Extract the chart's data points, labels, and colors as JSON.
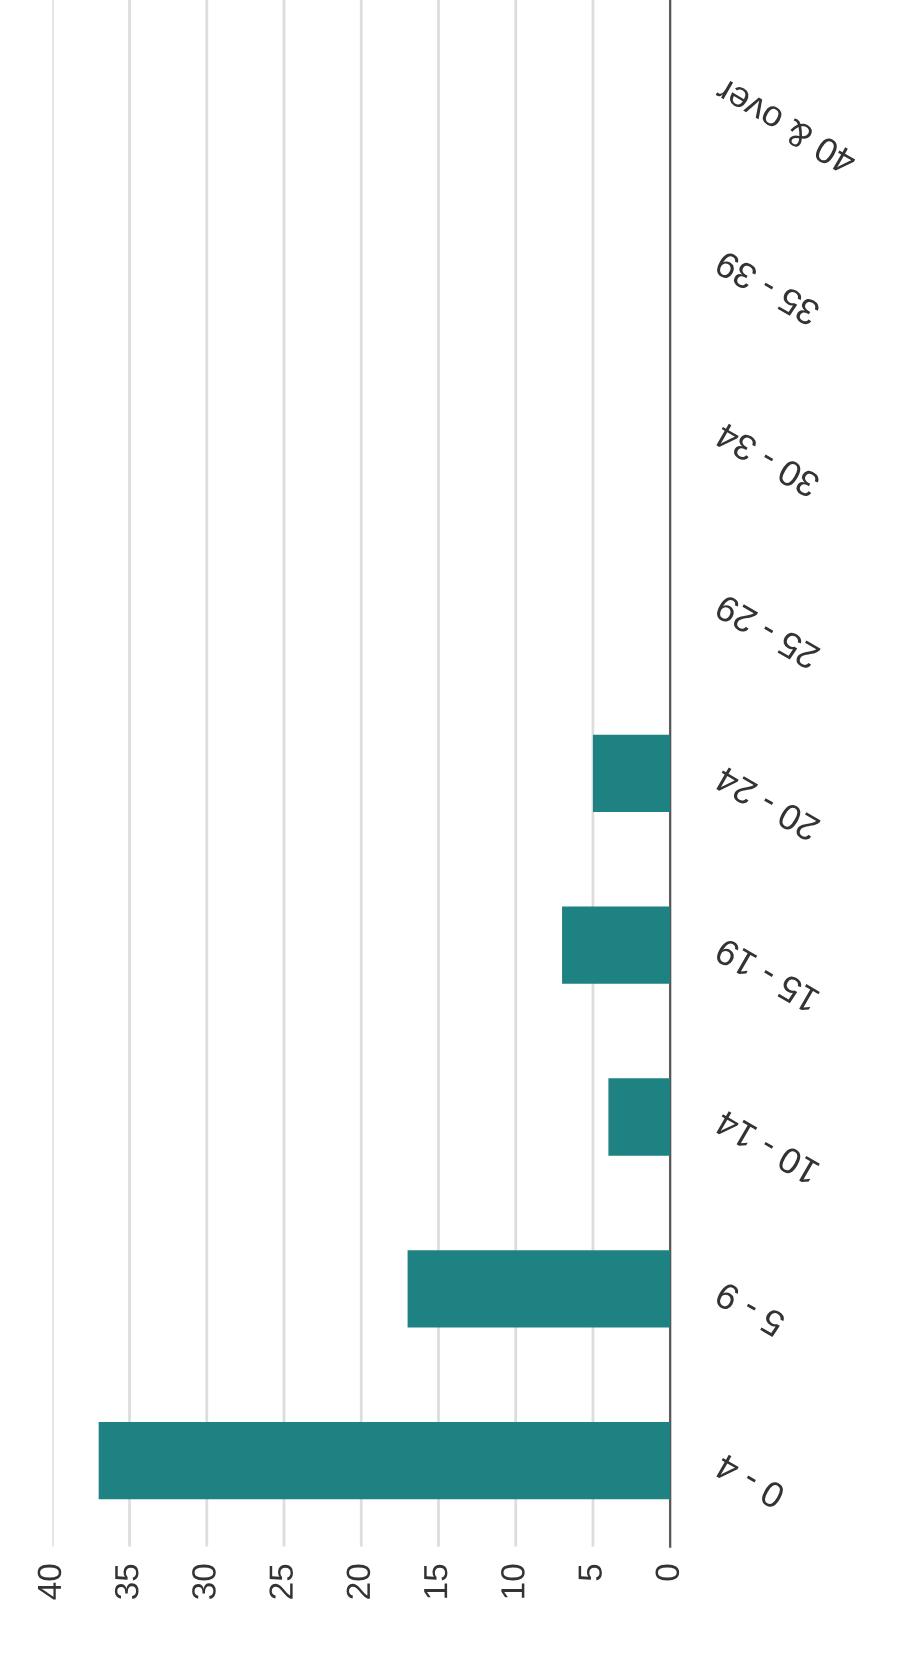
{
  "chart_data": {
    "type": "bar",
    "orientation": "horizontal",
    "categories": [
      "40 & over",
      "35 - 39",
      "30 - 34",
      "25 - 29",
      "20 - 24",
      "15 - 19",
      "10 - 14",
      "5 - 9",
      "0 - 4"
    ],
    "values": [
      0,
      0,
      0,
      0,
      5,
      7,
      4,
      17,
      37
    ],
    "color": "#1f8282",
    "xlim": [
      40,
      0
    ],
    "xticks": [
      40,
      35,
      30,
      25,
      20,
      15,
      10,
      5,
      0
    ],
    "grid": "x"
  }
}
